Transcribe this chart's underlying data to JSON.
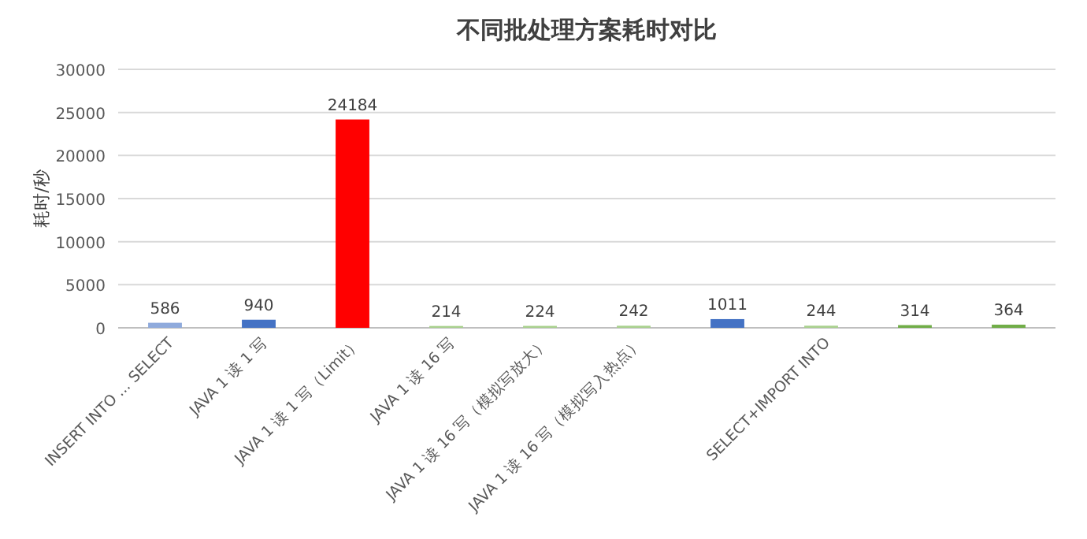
{
  "chart_data": {
    "type": "bar",
    "title": "不同批处理方案耗时对比",
    "ylabel": "耗时/秒",
    "categories": [
      "INSERT INTO ... SELECT",
      "JAVA 1 读 1 写",
      "JAVA 1 读 1 写（Limit）",
      "JAVA 1 读 16 写",
      "JAVA 1 读 16 写（模拟写放大）",
      "JAVA 1 读 16 写（模拟写入热点）",
      null,
      "SELECT+IMPORT INTO",
      null,
      null
    ],
    "values": [
      586,
      940,
      24184,
      214,
      224,
      242,
      1011,
      244,
      314,
      364
    ],
    "colors": [
      "#8faadc",
      "#4472c4",
      "#ff0000",
      "#a9d18e",
      "#a9d18e",
      "#a9d18e",
      "#4472c4",
      "#a9d18e",
      "#70ad47",
      "#70ad47"
    ],
    "ylim": [
      0,
      30000
    ],
    "yticks": [
      0,
      5000,
      10000,
      15000,
      20000,
      25000,
      30000
    ],
    "grid": "y",
    "data_labels": true
  }
}
